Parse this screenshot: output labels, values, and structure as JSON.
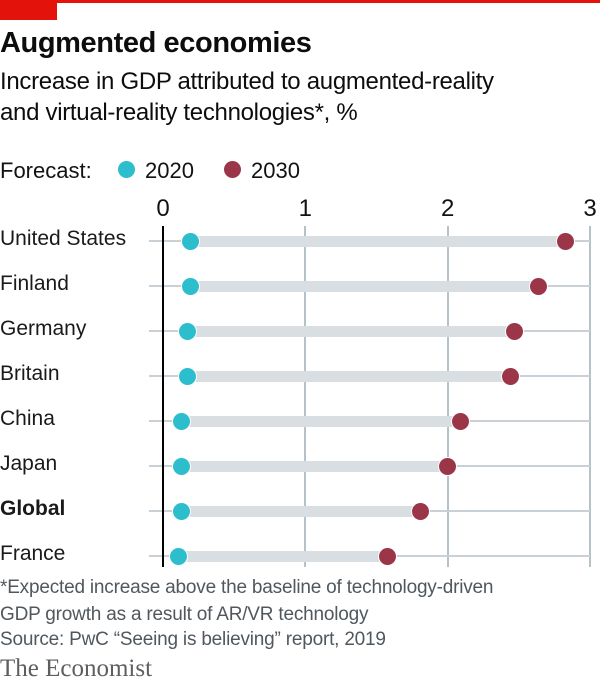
{
  "brand": {
    "accent_red": "#E3120B",
    "wordmark": "The Economist"
  },
  "header": {
    "title": "Augmented economies",
    "subtitle_line1": "Increase in GDP attributed to augmented-reality",
    "subtitle_line2": "and virtual-reality technologies*, %"
  },
  "legend": {
    "label": "Forecast:",
    "items": [
      {
        "name": "2020",
        "color": "#2DBECD"
      },
      {
        "name": "2030",
        "color": "#9A3648"
      }
    ]
  },
  "chart_data": {
    "type": "scatter",
    "variant": "dumbbell-dot-plot",
    "orientation": "horizontal",
    "categories": [
      "United States",
      "Finland",
      "Germany",
      "Britain",
      "China",
      "Japan",
      "Global",
      "France"
    ],
    "bold_category": "Global",
    "series": [
      {
        "name": "2020",
        "color": "#2DBECD",
        "values": [
          0.19,
          0.19,
          0.17,
          0.17,
          0.13,
          0.13,
          0.13,
          0.11
        ]
      },
      {
        "name": "2030",
        "color": "#9A3648",
        "values": [
          2.83,
          2.64,
          2.47,
          2.44,
          2.09,
          2.0,
          1.81,
          1.58
        ]
      }
    ],
    "xlim": [
      0,
      3
    ],
    "xticks": [
      "0",
      "1",
      "2",
      "3"
    ],
    "grid": "vertical-gridlines-on",
    "legend_position": "top-left",
    "colors": {
      "band": "#D9DEE2",
      "row_line": "#C9D1D7",
      "gridline": "#B6C2CA",
      "zero_axis": "#000000"
    }
  },
  "footnote": {
    "line1": "*Expected increase above the baseline of technology-driven",
    "line2": "GDP growth as a result of AR/VR technology"
  },
  "source": "Source: PwC “Seeing is believing” report, 2019"
}
